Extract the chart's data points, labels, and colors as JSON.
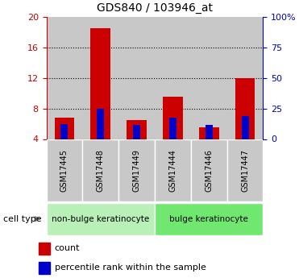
{
  "title": "GDS840 / 103946_at",
  "samples": [
    "GSM17445",
    "GSM17448",
    "GSM17449",
    "GSM17444",
    "GSM17446",
    "GSM17447"
  ],
  "red_values": [
    6.8,
    18.5,
    6.5,
    9.5,
    5.5,
    12.0
  ],
  "blue_values": [
    6.0,
    8.0,
    5.8,
    6.8,
    5.8,
    7.0
  ],
  "ylim_left": [
    4,
    20
  ],
  "ylim_right": [
    0,
    100
  ],
  "yticks_left": [
    4,
    8,
    12,
    16,
    20
  ],
  "yticks_right": [
    0,
    25,
    50,
    75,
    100
  ],
  "ytick_labels_right": [
    "0",
    "25",
    "50",
    "75",
    "100%"
  ],
  "groups": [
    {
      "label": "non-bulge keratinocyte",
      "indices": [
        0,
        1,
        2
      ],
      "color": "#b8f0b8"
    },
    {
      "label": "bulge keratinocyte",
      "indices": [
        3,
        4,
        5
      ],
      "color": "#70e870"
    }
  ],
  "cell_type_label": "cell type",
  "legend_red": "count",
  "legend_blue": "percentile rank within the sample",
  "red_color": "#cc0000",
  "blue_color": "#0000cc",
  "axis_color_left": "#cc0000",
  "axis_color_right": "#0000cc",
  "background_color": "#ffffff",
  "bar_bg_color": "#c8c8c8",
  "grid_color": "#000000",
  "grid_levels": [
    8,
    12,
    16
  ]
}
